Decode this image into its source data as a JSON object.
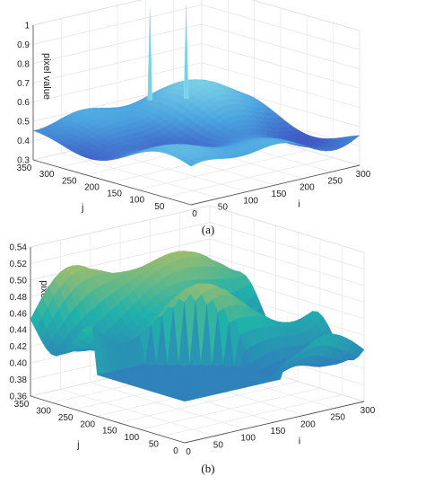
{
  "chart_data": [
    {
      "type": "surface",
      "caption": "(a)",
      "zlabel": "pixel value",
      "xlabel": "i",
      "ylabel": "j",
      "x_ticks": [
        "0",
        "50",
        "100",
        "150",
        "200",
        "250",
        "300"
      ],
      "y_ticks": [
        "50",
        "100",
        "150",
        "200",
        "250",
        "300",
        "350"
      ],
      "z_ticks": [
        "0.3",
        "0.4",
        "0.5",
        "0.6",
        "0.7",
        "0.8",
        "0.9",
        "1"
      ],
      "xlim": [
        0,
        300
      ],
      "ylim": [
        0,
        350
      ],
      "zlim": [
        0.3,
        1.0
      ],
      "grid": true,
      "colormap": "parula",
      "surface_range": [
        0.35,
        0.62
      ],
      "spike_peak": 1.0,
      "colors": {
        "low": "#3b4cc0",
        "mid": "#4aa3df",
        "high": "#7fd6e8"
      }
    },
    {
      "type": "surface",
      "caption": "(b)",
      "zlabel": "pixel value",
      "xlabel": "i",
      "ylabel": "j",
      "x_ticks": [
        "0",
        "50",
        "100",
        "150",
        "200",
        "250",
        "300"
      ],
      "y_ticks": [
        "0",
        "50",
        "100",
        "150",
        "200",
        "250",
        "300",
        "350"
      ],
      "z_ticks": [
        "0.36",
        "0.38",
        "0.40",
        "0.42",
        "0.44",
        "0.46",
        "0.48",
        "0.50",
        "0.52",
        "0.54"
      ],
      "xlim": [
        0,
        300
      ],
      "ylim": [
        0,
        350
      ],
      "zlim": [
        0.36,
        0.54
      ],
      "grid": true,
      "colormap": "parula",
      "surface_range": [
        0.37,
        0.54
      ],
      "plateau_value": 0.41,
      "colors": {
        "low": "#3a57c6",
        "mid": "#20b2aa",
        "high": "#f5c542"
      }
    }
  ]
}
